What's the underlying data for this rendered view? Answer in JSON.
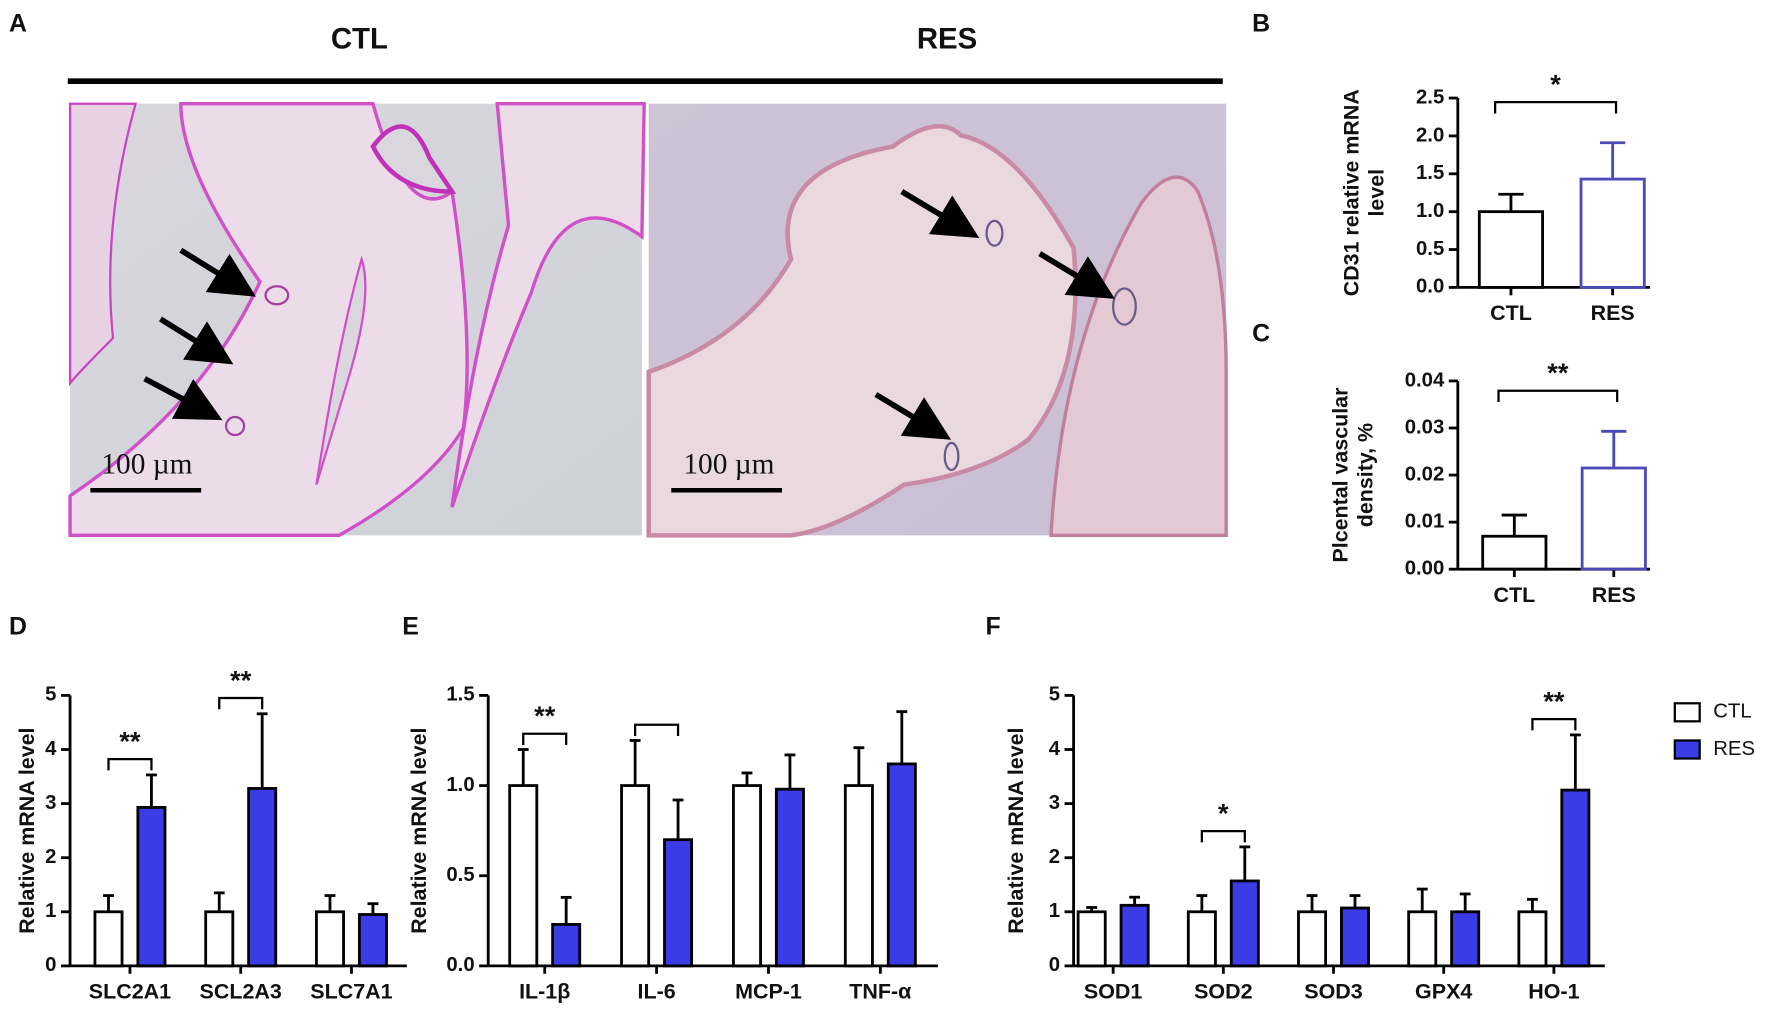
{
  "figure_a": {
    "label": "A",
    "columns": [
      "CTL",
      "RES"
    ],
    "scale_bars": [
      "100 µm",
      "100 µm"
    ]
  },
  "chart_data": [
    {
      "type": "bar",
      "panel_label": "B",
      "y_label": "CD31 relative mRNA level",
      "categories": [
        "CTL",
        "RES"
      ],
      "values": [
        1.0,
        1.43
      ],
      "errors": [
        0.23,
        0.48
      ],
      "colors": [
        "#000000",
        "#4b4bb8"
      ],
      "filled": false,
      "ylim": [
        0,
        2.5
      ],
      "yticks": [
        {
          "value": 0,
          "label": "0.0"
        },
        0.5,
        {
          "value": 1,
          "label": "1.0"
        },
        1.5,
        {
          "value": 2,
          "label": "2.0"
        },
        2.5
      ],
      "annotations": [
        {
          "text": "*"
        }
      ]
    },
    {
      "type": "bar",
      "panel_label": "C",
      "y_label": "Plcental vascular density, %",
      "categories": [
        "CTL",
        "RES"
      ],
      "values": [
        0.007,
        0.0215
      ],
      "errors": [
        0.0045,
        0.0078
      ],
      "colors": [
        "#000000",
        "#4b4bb8"
      ],
      "filled": false,
      "ylim": [
        0,
        0.04
      ],
      "yticks": [
        {
          "value": 0,
          "label": "0.00"
        },
        {
          "value": 0.01,
          "label": "0.01"
        },
        {
          "value": 0.02,
          "label": "0.02"
        },
        {
          "value": 0.03,
          "label": "0.03"
        },
        {
          "value": 0.04,
          "label": "0.04"
        }
      ],
      "annotations": [
        {
          "text": "**"
        }
      ]
    },
    {
      "type": "bar",
      "panel_label": "D",
      "y_label": "Relative mRNA level",
      "categories": [
        "SLC2A1",
        "SCL2A3",
        "SLC7A1"
      ],
      "series": [
        {
          "color": "#ffffff",
          "values": [
            1.0,
            1.0,
            1.0
          ],
          "errors": [
            0.3,
            0.35,
            0.3
          ]
        },
        {
          "color": "#3c3ce6",
          "values": [
            2.93,
            3.28,
            0.95
          ],
          "errors": [
            0.6,
            1.38,
            0.2
          ]
        }
      ],
      "ylim": [
        0,
        5
      ],
      "yticks": [
        0,
        1,
        2,
        3,
        4,
        5
      ],
      "annotations": [
        {
          "category": "SLC2A1",
          "text": "**"
        },
        {
          "category": "SCL2A3",
          "text": "**"
        }
      ]
    },
    {
      "type": "bar",
      "panel_label": "E",
      "y_label": "Relative mRNA level",
      "categories": [
        "IL-1β",
        "IL-6",
        "MCP-1",
        "TNF-α"
      ],
      "series": [
        {
          "color": "#ffffff",
          "values": [
            1.0,
            1.0,
            1.0,
            1.0
          ],
          "errors": [
            0.2,
            0.25,
            0.07,
            0.21
          ]
        },
        {
          "color": "#3c3ce6",
          "values": [
            0.23,
            0.7,
            0.98,
            1.12
          ],
          "errors": [
            0.15,
            0.22,
            0.19,
            0.29
          ]
        }
      ],
      "ylim": [
        0,
        1.5
      ],
      "yticks": [
        {
          "value": 0,
          "label": "0.0"
        },
        0.5,
        {
          "value": 1,
          "label": "1.0"
        },
        1.5
      ],
      "annotations": [
        {
          "category": "IL-1β",
          "text": "**"
        },
        {
          "category": "IL-6"
        }
      ]
    },
    {
      "type": "bar",
      "panel_label": "F",
      "y_label": "Relative mRNA level",
      "categories": [
        "SOD1",
        "SOD2",
        "SOD3",
        "GPX4",
        "HO-1"
      ],
      "series": [
        {
          "name": "CTL",
          "color": "#ffffff",
          "values": [
            1.0,
            1.0,
            1.0,
            1.0,
            1.0
          ],
          "errors": [
            0.08,
            0.3,
            0.3,
            0.42,
            0.23
          ]
        },
        {
          "name": "RES",
          "color": "#3c3ce6",
          "values": [
            1.12,
            1.57,
            1.07,
            1.0,
            3.25
          ],
          "errors": [
            0.15,
            0.63,
            0.23,
            0.33,
            1.02
          ]
        }
      ],
      "ylim": [
        0,
        5
      ],
      "yticks": [
        0,
        1,
        2,
        3,
        4,
        5
      ],
      "legend": "right",
      "annotations": [
        {
          "category": "SOD2",
          "text": "*"
        },
        {
          "category": "HO-1",
          "text": "**"
        }
      ]
    }
  ]
}
